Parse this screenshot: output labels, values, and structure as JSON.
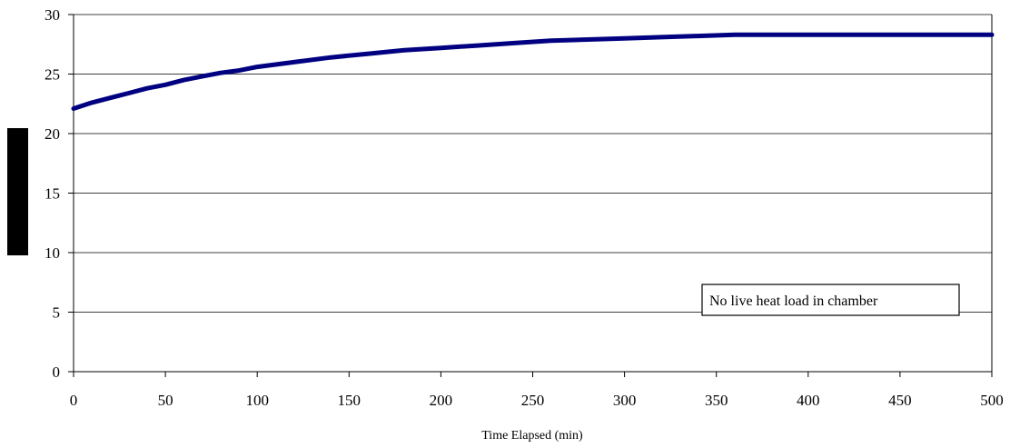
{
  "chart_data": {
    "type": "line",
    "xlabel": "Time Elapsed (min)",
    "ylabel": "",
    "xlim": [
      0,
      500
    ],
    "ylim": [
      0,
      30
    ],
    "xticks": [
      0,
      50,
      100,
      150,
      200,
      250,
      300,
      350,
      400,
      450,
      500
    ],
    "yticks": [
      0,
      5,
      10,
      15,
      20,
      25,
      30
    ],
    "grid": "horizontal",
    "annotation": "No live heat load in chamber",
    "series": [
      {
        "color": "#000080",
        "x": [
          0,
          10,
          20,
          30,
          40,
          50,
          60,
          70,
          80,
          90,
          100,
          120,
          140,
          160,
          180,
          200,
          220,
          240,
          260,
          280,
          300,
          320,
          340,
          360,
          380,
          400,
          450,
          500
        ],
        "y": [
          22.1,
          22.6,
          23.0,
          23.4,
          23.8,
          24.1,
          24.5,
          24.8,
          25.1,
          25.3,
          25.6,
          26.0,
          26.4,
          26.7,
          27.0,
          27.2,
          27.4,
          27.6,
          27.8,
          27.9,
          28.0,
          28.1,
          28.2,
          28.3,
          28.3,
          28.3,
          28.3,
          28.3
        ]
      }
    ]
  }
}
